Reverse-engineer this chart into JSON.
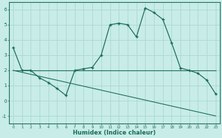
{
  "title": "",
  "xlabel": "Humidex (Indice chaleur)",
  "ylabel": "",
  "background_color": "#c8ece8",
  "grid_color": "#a8d8d0",
  "line_color": "#1a6b5a",
  "xlim": [
    -0.5,
    23.5
  ],
  "ylim": [
    -1.5,
    6.5
  ],
  "xticks": [
    0,
    1,
    2,
    3,
    4,
    5,
    6,
    7,
    8,
    9,
    10,
    11,
    12,
    13,
    14,
    15,
    16,
    17,
    18,
    19,
    20,
    21,
    22,
    23
  ],
  "yticks": [
    -1,
    0,
    1,
    2,
    3,
    4,
    5,
    6
  ],
  "curve1_x": [
    0,
    1,
    2,
    3,
    4,
    5,
    6,
    7,
    8,
    9,
    10,
    11,
    12,
    13,
    14,
    15,
    16,
    17,
    18,
    19,
    20,
    21,
    22,
    23
  ],
  "curve1_y": [
    3.5,
    2.0,
    2.0,
    1.5,
    1.2,
    0.8,
    0.35,
    2.0,
    2.1,
    2.2,
    3.0,
    5.0,
    5.1,
    5.0,
    4.2,
    6.1,
    5.8,
    5.35,
    3.8,
    2.15,
    2.0,
    1.8,
    1.35,
    0.45
  ],
  "curve2_x": [
    0,
    23
  ],
  "curve2_y": [
    2.0,
    2.0
  ],
  "curve3_x": [
    0,
    23
  ],
  "curve3_y": [
    2.0,
    -1.0
  ]
}
